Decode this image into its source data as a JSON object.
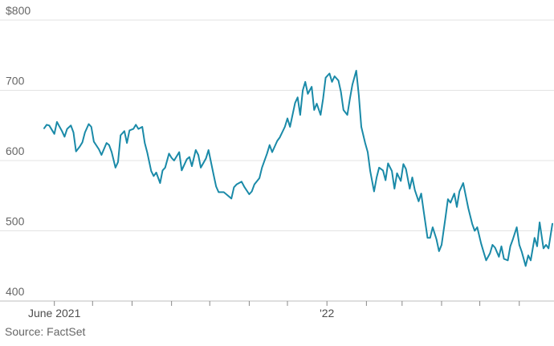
{
  "source": "Source: FactSet",
  "chart_data": {
    "type": "line",
    "title": "",
    "xlabel": "",
    "ylabel": "",
    "ylim": [
      400,
      800
    ],
    "y_ticks": [
      {
        "value": 800,
        "label": "$800"
      },
      {
        "value": 700,
        "label": "700"
      },
      {
        "value": 600,
        "label": "600"
      },
      {
        "value": 500,
        "label": "500"
      },
      {
        "value": 400,
        "label": "400"
      }
    ],
    "x_labels": [
      {
        "date": "2021-06-01",
        "label": "June 2021"
      },
      {
        "date": "2022-01-01",
        "label": "'22"
      }
    ],
    "x_ticks": [
      "2021-06-01",
      "2021-07-01",
      "2021-08-01",
      "2021-09-01",
      "2021-10-01",
      "2021-11-01",
      "2021-12-01",
      "2022-01-01",
      "2022-02-01",
      "2022-03-01",
      "2022-04-01",
      "2022-05-01",
      "2022-06-01"
    ],
    "xlim": [
      "2021-05-24",
      "2022-06-27"
    ],
    "grid": true,
    "line_color": "#1a8aa8",
    "series": [
      {
        "values": [
          [
            "2021-05-24",
            646
          ],
          [
            "2021-05-26",
            651
          ],
          [
            "2021-05-28",
            650
          ],
          [
            "2021-06-01",
            638
          ],
          [
            "2021-06-03",
            655
          ],
          [
            "2021-06-07",
            642
          ],
          [
            "2021-06-09",
            634
          ],
          [
            "2021-06-11",
            645
          ],
          [
            "2021-06-14",
            650
          ],
          [
            "2021-06-16",
            640
          ],
          [
            "2021-06-18",
            613
          ],
          [
            "2021-06-21",
            620
          ],
          [
            "2021-06-23",
            626
          ],
          [
            "2021-06-25",
            640
          ],
          [
            "2021-06-28",
            652
          ],
          [
            "2021-06-30",
            648
          ],
          [
            "2021-07-02",
            627
          ],
          [
            "2021-07-06",
            616
          ],
          [
            "2021-07-08",
            608
          ],
          [
            "2021-07-12",
            625
          ],
          [
            "2021-07-14",
            622
          ],
          [
            "2021-07-16",
            612
          ],
          [
            "2021-07-19",
            590
          ],
          [
            "2021-07-21",
            598
          ],
          [
            "2021-07-23",
            636
          ],
          [
            "2021-07-26",
            642
          ],
          [
            "2021-07-28",
            625
          ],
          [
            "2021-07-30",
            643
          ],
          [
            "2021-08-02",
            645
          ],
          [
            "2021-08-04",
            651
          ],
          [
            "2021-08-06",
            645
          ],
          [
            "2021-08-09",
            648
          ],
          [
            "2021-08-11",
            625
          ],
          [
            "2021-08-13",
            611
          ],
          [
            "2021-08-16",
            585
          ],
          [
            "2021-08-18",
            578
          ],
          [
            "2021-08-20",
            583
          ],
          [
            "2021-08-23",
            568
          ],
          [
            "2021-08-25",
            586
          ],
          [
            "2021-08-27",
            590
          ],
          [
            "2021-08-30",
            610
          ],
          [
            "2021-09-01",
            604
          ],
          [
            "2021-09-03",
            600
          ],
          [
            "2021-09-07",
            612
          ],
          [
            "2021-09-09",
            586
          ],
          [
            "2021-09-13",
            602
          ],
          [
            "2021-09-15",
            605
          ],
          [
            "2021-09-17",
            592
          ],
          [
            "2021-09-20",
            615
          ],
          [
            "2021-09-22",
            608
          ],
          [
            "2021-09-24",
            590
          ],
          [
            "2021-09-28",
            603
          ],
          [
            "2021-09-30",
            615
          ],
          [
            "2021-10-04",
            580
          ],
          [
            "2021-10-06",
            563
          ],
          [
            "2021-10-08",
            555
          ],
          [
            "2021-10-12",
            555
          ],
          [
            "2021-10-14",
            552
          ],
          [
            "2021-10-18",
            546
          ],
          [
            "2021-10-20",
            562
          ],
          [
            "2021-10-22",
            566
          ],
          [
            "2021-10-26",
            570
          ],
          [
            "2021-10-28",
            563
          ],
          [
            "2021-11-01",
            552
          ],
          [
            "2021-11-03",
            556
          ],
          [
            "2021-11-05",
            566
          ],
          [
            "2021-11-09",
            575
          ],
          [
            "2021-11-11",
            590
          ],
          [
            "2021-11-15",
            610
          ],
          [
            "2021-11-17",
            622
          ],
          [
            "2021-11-19",
            612
          ],
          [
            "2021-11-23",
            628
          ],
          [
            "2021-11-25",
            633
          ],
          [
            "2021-11-29",
            648
          ],
          [
            "2021-12-01",
            660
          ],
          [
            "2021-12-03",
            648
          ],
          [
            "2021-12-07",
            682
          ],
          [
            "2021-12-09",
            690
          ],
          [
            "2021-12-11",
            665
          ],
          [
            "2021-12-13",
            700
          ],
          [
            "2021-12-15",
            712
          ],
          [
            "2021-12-17",
            695
          ],
          [
            "2021-12-20",
            705
          ],
          [
            "2021-12-22",
            672
          ],
          [
            "2021-12-24",
            681
          ],
          [
            "2021-12-27",
            665
          ],
          [
            "2021-12-29",
            688
          ],
          [
            "2021-12-31",
            718
          ],
          [
            "2022-01-03",
            724
          ],
          [
            "2022-01-05",
            712
          ],
          [
            "2022-01-07",
            720
          ],
          [
            "2022-01-10",
            714
          ],
          [
            "2022-01-12",
            698
          ],
          [
            "2022-01-14",
            672
          ],
          [
            "2022-01-17",
            665
          ],
          [
            "2022-01-19",
            688
          ],
          [
            "2022-01-21",
            708
          ],
          [
            "2022-01-24",
            728
          ],
          [
            "2022-01-26",
            693
          ],
          [
            "2022-01-28",
            648
          ],
          [
            "2022-01-31",
            625
          ],
          [
            "2022-02-02",
            612
          ],
          [
            "2022-02-04",
            585
          ],
          [
            "2022-02-07",
            556
          ],
          [
            "2022-02-09",
            576
          ],
          [
            "2022-02-11",
            590
          ],
          [
            "2022-02-14",
            586
          ],
          [
            "2022-02-16",
            572
          ],
          [
            "2022-02-18",
            596
          ],
          [
            "2022-02-21",
            585
          ],
          [
            "2022-02-23",
            560
          ],
          [
            "2022-02-25",
            582
          ],
          [
            "2022-02-28",
            571
          ],
          [
            "2022-03-02",
            595
          ],
          [
            "2022-03-04",
            588
          ],
          [
            "2022-03-07",
            560
          ],
          [
            "2022-03-09",
            576
          ],
          [
            "2022-03-11",
            558
          ],
          [
            "2022-03-14",
            542
          ],
          [
            "2022-03-16",
            553
          ],
          [
            "2022-03-18",
            527
          ],
          [
            "2022-03-21",
            490
          ],
          [
            "2022-03-23",
            490
          ],
          [
            "2022-03-25",
            505
          ],
          [
            "2022-03-28",
            488
          ],
          [
            "2022-03-30",
            471
          ],
          [
            "2022-04-01",
            480
          ],
          [
            "2022-04-04",
            518
          ],
          [
            "2022-04-06",
            545
          ],
          [
            "2022-04-08",
            540
          ],
          [
            "2022-04-11",
            553
          ],
          [
            "2022-04-13",
            534
          ],
          [
            "2022-04-15",
            556
          ],
          [
            "2022-04-18",
            568
          ],
          [
            "2022-04-20",
            550
          ],
          [
            "2022-04-22",
            532
          ],
          [
            "2022-04-25",
            510
          ],
          [
            "2022-04-27",
            500
          ],
          [
            "2022-04-29",
            505
          ],
          [
            "2022-05-02",
            482
          ],
          [
            "2022-05-04",
            470
          ],
          [
            "2022-05-06",
            458
          ],
          [
            "2022-05-09",
            468
          ],
          [
            "2022-05-11",
            480
          ],
          [
            "2022-05-13",
            476
          ],
          [
            "2022-05-16",
            463
          ],
          [
            "2022-05-18",
            478
          ],
          [
            "2022-05-20",
            460
          ],
          [
            "2022-05-23",
            458
          ],
          [
            "2022-05-25",
            478
          ],
          [
            "2022-05-27",
            488
          ],
          [
            "2022-05-30",
            505
          ],
          [
            "2022-06-01",
            480
          ],
          [
            "2022-06-03",
            470
          ],
          [
            "2022-06-06",
            450
          ],
          [
            "2022-06-08",
            465
          ],
          [
            "2022-06-10",
            458
          ],
          [
            "2022-06-13",
            490
          ],
          [
            "2022-06-15",
            478
          ],
          [
            "2022-06-17",
            512
          ],
          [
            "2022-06-20",
            475
          ],
          [
            "2022-06-22",
            480
          ],
          [
            "2022-06-24",
            475
          ],
          [
            "2022-06-27",
            510
          ]
        ]
      }
    ]
  }
}
